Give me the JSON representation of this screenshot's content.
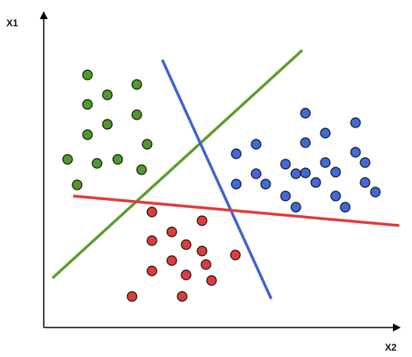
{
  "axes": {
    "y_label": "X1",
    "x_label": "X2"
  }
}
